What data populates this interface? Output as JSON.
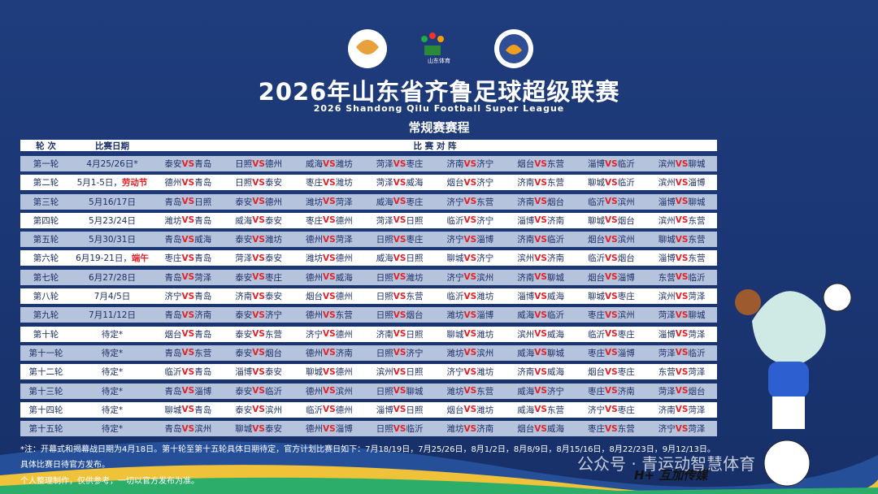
{
  "header": {
    "logo_text": "山东体育",
    "title": "2026年山东省齐鲁足球超级联赛",
    "subtitle": "2026 Shandong Qilu Football Super League",
    "section": "常规赛赛程"
  },
  "table": {
    "columns": [
      "轮 次",
      "比赛日期",
      "比 赛 对 阵"
    ],
    "vs": "VS",
    "rows": [
      {
        "round": "第一轮",
        "date": "4月25/26日*",
        "matches": [
          [
            "泰安",
            "青岛"
          ],
          [
            "日照",
            "德州"
          ],
          [
            "威海",
            "潍坊"
          ],
          [
            "菏泽",
            "枣庄"
          ],
          [
            "济南",
            "济宁"
          ],
          [
            "烟台",
            "东营"
          ],
          [
            "淄博",
            "临沂"
          ],
          [
            "滨州",
            "聊城"
          ]
        ]
      },
      {
        "round": "第二轮",
        "date": "5月1-5日，",
        "holiday": "劳动节",
        "matches": [
          [
            "德州",
            "青岛"
          ],
          [
            "日照",
            "泰安"
          ],
          [
            "枣庄",
            "潍坊"
          ],
          [
            "菏泽",
            "威海"
          ],
          [
            "烟台",
            "济宁"
          ],
          [
            "济南",
            "东营"
          ],
          [
            "聊城",
            "临沂"
          ],
          [
            "滨州",
            "淄博"
          ]
        ]
      },
      {
        "round": "第三轮",
        "date": "5月16/17日",
        "matches": [
          [
            "青岛",
            "日照"
          ],
          [
            "泰安",
            "德州"
          ],
          [
            "潍坊",
            "菏泽"
          ],
          [
            "威海",
            "枣庄"
          ],
          [
            "济宁",
            "东营"
          ],
          [
            "济南",
            "烟台"
          ],
          [
            "临沂",
            "滨州"
          ],
          [
            "淄博",
            "聊城"
          ]
        ]
      },
      {
        "round": "第四轮",
        "date": "5月23/24日",
        "matches": [
          [
            "潍坊",
            "青岛"
          ],
          [
            "威海",
            "泰安"
          ],
          [
            "枣庄",
            "德州"
          ],
          [
            "菏泽",
            "日照"
          ],
          [
            "临沂",
            "济宁"
          ],
          [
            "淄博",
            "济南"
          ],
          [
            "聊城",
            "烟台"
          ],
          [
            "滨州",
            "东营"
          ]
        ]
      },
      {
        "round": "第五轮",
        "date": "5月30/31日",
        "matches": [
          [
            "青岛",
            "威海"
          ],
          [
            "泰安",
            "潍坊"
          ],
          [
            "德州",
            "菏泽"
          ],
          [
            "日照",
            "枣庄"
          ],
          [
            "济宁",
            "淄博"
          ],
          [
            "济南",
            "临沂"
          ],
          [
            "烟台",
            "滨州"
          ],
          [
            "聊城",
            "东营"
          ]
        ]
      },
      {
        "round": "第六轮",
        "date": "6月19-21日，",
        "holiday": "端午",
        "matches": [
          [
            "枣庄",
            "青岛"
          ],
          [
            "菏泽",
            "泰安"
          ],
          [
            "潍坊",
            "德州"
          ],
          [
            "威海",
            "日照"
          ],
          [
            "聊城",
            "济宁"
          ],
          [
            "滨州",
            "济南"
          ],
          [
            "临沂",
            "烟台"
          ],
          [
            "淄博",
            "东营"
          ]
        ]
      },
      {
        "round": "第七轮",
        "date": "6月27/28日",
        "matches": [
          [
            "青岛",
            "菏泽"
          ],
          [
            "泰安",
            "枣庄"
          ],
          [
            "德州",
            "威海"
          ],
          [
            "日照",
            "潍坊"
          ],
          [
            "济宁",
            "滨州"
          ],
          [
            "济南",
            "聊城"
          ],
          [
            "烟台",
            "淄博"
          ],
          [
            "东营",
            "临沂"
          ]
        ]
      },
      {
        "round": "第八轮",
        "date": "7月4/5日",
        "matches": [
          [
            "济宁",
            "青岛"
          ],
          [
            "济南",
            "泰安"
          ],
          [
            "烟台",
            "德州"
          ],
          [
            "日照",
            "东营"
          ],
          [
            "临沂",
            "潍坊"
          ],
          [
            "淄博",
            "威海"
          ],
          [
            "聊城",
            "枣庄"
          ],
          [
            "滨州",
            "菏泽"
          ]
        ]
      },
      {
        "round": "第九轮",
        "date": "7月11/12日",
        "matches": [
          [
            "青岛",
            "济南"
          ],
          [
            "泰安",
            "济宁"
          ],
          [
            "德州",
            "东营"
          ],
          [
            "日照",
            "烟台"
          ],
          [
            "潍坊",
            "淄博"
          ],
          [
            "威海",
            "临沂"
          ],
          [
            "枣庄",
            "滨州"
          ],
          [
            "菏泽",
            "聊城"
          ]
        ]
      },
      {
        "round": "第十轮",
        "date": "待定*",
        "matches": [
          [
            "烟台",
            "青岛"
          ],
          [
            "泰安",
            "东营"
          ],
          [
            "济宁",
            "德州"
          ],
          [
            "济南",
            "日照"
          ],
          [
            "聊城",
            "潍坊"
          ],
          [
            "滨州",
            "威海"
          ],
          [
            "临沂",
            "枣庄"
          ],
          [
            "淄博",
            "菏泽"
          ]
        ]
      },
      {
        "round": "第十一轮",
        "date": "待定*",
        "matches": [
          [
            "青岛",
            "东营"
          ],
          [
            "泰安",
            "烟台"
          ],
          [
            "德州",
            "济南"
          ],
          [
            "日照",
            "济宁"
          ],
          [
            "潍坊",
            "滨州"
          ],
          [
            "威海",
            "聊城"
          ],
          [
            "枣庄",
            "淄博"
          ],
          [
            "菏泽",
            "临沂"
          ]
        ]
      },
      {
        "round": "第十二轮",
        "date": "待定*",
        "matches": [
          [
            "临沂",
            "青岛"
          ],
          [
            "淄博",
            "泰安"
          ],
          [
            "聊城",
            "德州"
          ],
          [
            "滨州",
            "日照"
          ],
          [
            "济宁",
            "潍坊"
          ],
          [
            "济南",
            "威海"
          ],
          [
            "烟台",
            "枣庄"
          ],
          [
            "东营",
            "菏泽"
          ]
        ]
      },
      {
        "round": "第十三轮",
        "date": "待定*",
        "matches": [
          [
            "青岛",
            "淄博"
          ],
          [
            "泰安",
            "临沂"
          ],
          [
            "德州",
            "滨州"
          ],
          [
            "日照",
            "聊城"
          ],
          [
            "潍坊",
            "东营"
          ],
          [
            "威海",
            "济宁"
          ],
          [
            "枣庄",
            "济南"
          ],
          [
            "菏泽",
            "烟台"
          ]
        ]
      },
      {
        "round": "第十四轮",
        "date": "待定*",
        "matches": [
          [
            "聊城",
            "青岛"
          ],
          [
            "泰安",
            "滨州"
          ],
          [
            "临沂",
            "德州"
          ],
          [
            "淄博",
            "日照"
          ],
          [
            "烟台",
            "潍坊"
          ],
          [
            "威海",
            "东营"
          ],
          [
            "济宁",
            "枣庄"
          ],
          [
            "济南",
            "菏泽"
          ]
        ]
      },
      {
        "round": "第十五轮",
        "date": "待定*",
        "matches": [
          [
            "青岛",
            "滨州"
          ],
          [
            "聊城",
            "泰安"
          ],
          [
            "德州",
            "淄博"
          ],
          [
            "日照",
            "临沂"
          ],
          [
            "潍坊",
            "济南"
          ],
          [
            "烟台",
            "威海"
          ],
          [
            "枣庄",
            "东营"
          ],
          [
            "济宁",
            "菏泽"
          ]
        ]
      }
    ]
  },
  "notes": [
    "*注：开幕式和揭幕战日期为4月18日。第十轮至第十五轮具体日期待定，官方计划比赛日如下：7月18/19日，7月25/26日，8月1/2日，8月8/9日，8月15/16日，8月22/23日，9月12/13日。具体比赛日待官方发布。",
    "个人整理制作，仅供参考，一切以官方发布为准。"
  ],
  "watermark": {
    "account": "公众号 · 青运动智慧体育",
    "brand": "H+ 互加传媒"
  }
}
